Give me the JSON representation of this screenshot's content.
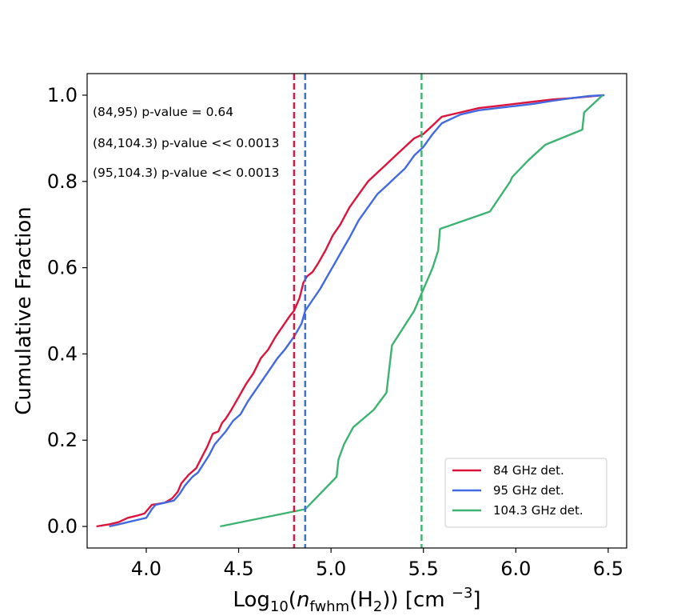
{
  "chart_data": {
    "type": "line",
    "title": "",
    "xlabel": {
      "prefix": "Log",
      "log_base": "10",
      "variable": "n",
      "variable_subscript": "fwhm",
      "species": "H",
      "species_subscript": "2",
      "units_prefix": "[cm ",
      "units_exponent": "−3",
      "units_suffix": "]"
    },
    "ylabel": "Cumulative Fraction",
    "xlim": [
      3.68,
      6.6
    ],
    "ylim": [
      -0.05,
      1.05
    ],
    "xticks": [
      4.0,
      4.5,
      5.0,
      5.5,
      6.0,
      6.5
    ],
    "xtick_labels": [
      "4.0",
      "4.5",
      "5.0",
      "5.5",
      "6.0",
      "6.5"
    ],
    "yticks": [
      0.0,
      0.2,
      0.4,
      0.6,
      0.8,
      1.0
    ],
    "ytick_labels": [
      "0.0",
      "0.2",
      "0.4",
      "0.6",
      "0.8",
      "1.0"
    ],
    "grid": false,
    "legend_position": "lower-right",
    "series": [
      {
        "name": "84 GHz det.",
        "color": "#dc143c",
        "median": 4.8,
        "x": [
          3.73,
          3.8,
          3.85,
          3.9,
          3.95,
          3.99,
          4.02,
          4.03,
          4.1,
          4.14,
          4.17,
          4.19,
          4.23,
          4.27,
          4.3,
          4.33,
          4.36,
          4.39,
          4.41,
          4.43,
          4.46,
          4.5,
          4.54,
          4.58,
          4.62,
          4.66,
          4.7,
          4.74,
          4.78,
          4.8,
          4.83,
          4.85,
          4.87,
          4.9,
          4.93,
          4.97,
          5.01,
          5.05,
          5.1,
          5.15,
          5.2,
          5.25,
          5.3,
          5.35,
          5.4,
          5.45,
          5.5,
          5.55,
          5.6,
          5.7,
          5.8,
          5.9,
          6.0,
          6.1,
          6.2,
          6.3,
          6.4,
          6.47
        ],
        "y": [
          0.0,
          0.005,
          0.01,
          0.02,
          0.025,
          0.03,
          0.045,
          0.05,
          0.055,
          0.065,
          0.08,
          0.1,
          0.12,
          0.135,
          0.16,
          0.185,
          0.215,
          0.22,
          0.24,
          0.25,
          0.27,
          0.3,
          0.33,
          0.355,
          0.39,
          0.41,
          0.44,
          0.465,
          0.49,
          0.5,
          0.53,
          0.565,
          0.58,
          0.59,
          0.61,
          0.64,
          0.675,
          0.7,
          0.74,
          0.77,
          0.8,
          0.82,
          0.84,
          0.86,
          0.88,
          0.9,
          0.91,
          0.93,
          0.95,
          0.96,
          0.97,
          0.975,
          0.98,
          0.985,
          0.99,
          0.993,
          0.997,
          1.0
        ]
      },
      {
        "name": "95 GHz det.",
        "color": "#4169e1",
        "median": 4.86,
        "x": [
          3.8,
          3.85,
          3.9,
          3.95,
          4.0,
          4.03,
          4.05,
          4.1,
          4.15,
          4.18,
          4.21,
          4.25,
          4.28,
          4.31,
          4.34,
          4.37,
          4.4,
          4.43,
          4.47,
          4.51,
          4.55,
          4.59,
          4.63,
          4.67,
          4.71,
          4.75,
          4.8,
          4.84,
          4.86,
          4.9,
          4.94,
          4.98,
          5.02,
          5.06,
          5.1,
          5.15,
          5.2,
          5.25,
          5.3,
          5.35,
          5.4,
          5.45,
          5.5,
          5.55,
          5.6,
          5.7,
          5.8,
          5.9,
          6.0,
          6.1,
          6.2,
          6.3,
          6.4,
          6.48
        ],
        "y": [
          0.0,
          0.005,
          0.01,
          0.015,
          0.02,
          0.04,
          0.05,
          0.055,
          0.06,
          0.075,
          0.095,
          0.115,
          0.125,
          0.145,
          0.165,
          0.19,
          0.205,
          0.22,
          0.245,
          0.26,
          0.29,
          0.315,
          0.34,
          0.365,
          0.39,
          0.41,
          0.44,
          0.47,
          0.5,
          0.525,
          0.55,
          0.58,
          0.61,
          0.64,
          0.67,
          0.71,
          0.74,
          0.77,
          0.79,
          0.81,
          0.83,
          0.86,
          0.88,
          0.91,
          0.935,
          0.955,
          0.965,
          0.97,
          0.975,
          0.98,
          0.987,
          0.993,
          0.998,
          1.0
        ]
      },
      {
        "name": "104.3 GHz det.",
        "color": "#3cb371",
        "median": 5.49,
        "x": [
          4.4,
          4.86,
          5.03,
          5.04,
          5.07,
          5.12,
          5.23,
          5.3,
          5.33,
          5.45,
          5.49,
          5.51,
          5.53,
          5.55,
          5.58,
          5.59,
          5.86,
          5.97,
          5.98,
          6.07,
          6.16,
          6.36,
          6.37,
          6.47
        ],
        "y": [
          0.0,
          0.04,
          0.115,
          0.155,
          0.19,
          0.23,
          0.27,
          0.31,
          0.42,
          0.5,
          0.54,
          0.56,
          0.58,
          0.6,
          0.64,
          0.69,
          0.73,
          0.8,
          0.81,
          0.85,
          0.885,
          0.92,
          0.96,
          1.0
        ]
      }
    ],
    "annotations": [
      "(84,95) p-value = 0.64",
      "(84,104.3) p-value << 0.0013",
      "(95,104.3) p-value << 0.0013"
    ]
  }
}
